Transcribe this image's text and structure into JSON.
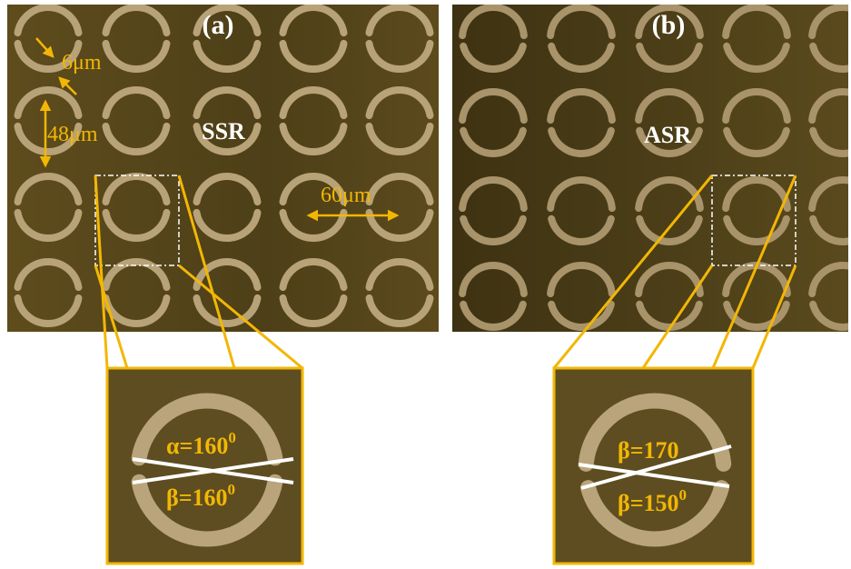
{
  "panel_a": {
    "label": "(a)",
    "sample": "SSR",
    "scale_labels": [
      "6μm",
      "48μm",
      "60μm"
    ],
    "inset": {
      "alpha": "α=160",
      "alpha_sup": "0",
      "beta": "β=160",
      "beta_sup": "0"
    }
  },
  "panel_b": {
    "label": "(b)",
    "sample": "ASR",
    "inset": {
      "beta_top": "β=170",
      "beta": "β=150",
      "beta_sup": "0"
    }
  }
}
